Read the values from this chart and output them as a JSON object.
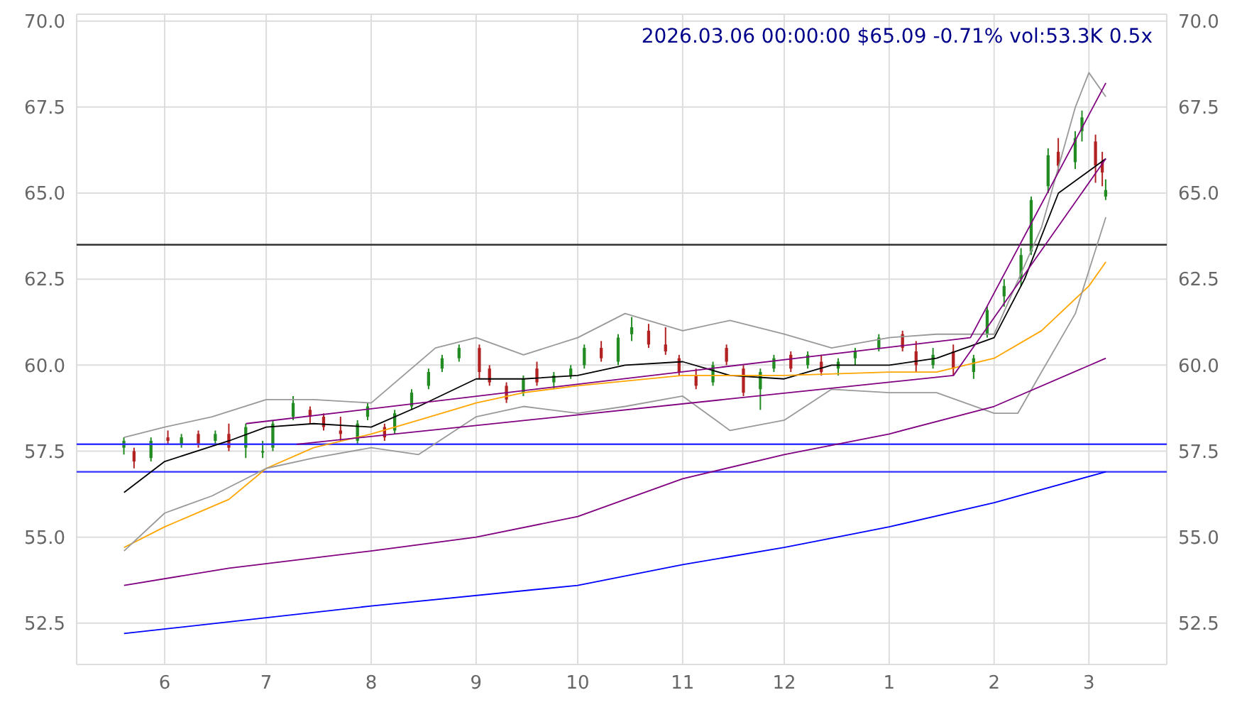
{
  "chart_data": {
    "type": "candlestick",
    "title": "2026.03.06 00:00:00 $65.09 -0.71% vol:53.3K 0.5x",
    "x": [
      "2025-05-20",
      "2025-05-23",
      "2025-05-28",
      "2025-06-02",
      "2025-06-06",
      "2025-06-11",
      "2025-06-16",
      "2025-06-20",
      "2025-06-25",
      "2025-06-30",
      "2025-07-03",
      "2025-07-09",
      "2025-07-14",
      "2025-07-18",
      "2025-07-23",
      "2025-07-28",
      "2025-07-31",
      "2025-08-05",
      "2025-08-08",
      "2025-08-13",
      "2025-08-18",
      "2025-08-22",
      "2025-08-27",
      "2025-09-02",
      "2025-09-05",
      "2025-09-10",
      "2025-09-15",
      "2025-09-19",
      "2025-09-24",
      "2025-09-29",
      "2025-10-03",
      "2025-10-08",
      "2025-10-13",
      "2025-10-17",
      "2025-10-22",
      "2025-10-27",
      "2025-10-31",
      "2025-11-05",
      "2025-11-10",
      "2025-11-14",
      "2025-11-19",
      "2025-11-24",
      "2025-11-28",
      "2025-12-03",
      "2025-12-08",
      "2025-12-12",
      "2025-12-17",
      "2025-12-22",
      "2025-12-29",
      "2026-01-05",
      "2026-01-09",
      "2026-01-14",
      "2026-01-20",
      "2026-01-26",
      "2026-01-30",
      "2026-02-04",
      "2026-02-09",
      "2026-02-12",
      "2026-02-17",
      "2026-02-20",
      "2026-02-25",
      "2026-02-27",
      "2026-03-03",
      "2026-03-05",
      "2026-03-06"
    ],
    "ohlc": [
      [
        57.6,
        57.9,
        57.4,
        57.8
      ],
      [
        57.5,
        57.6,
        57.0,
        57.2
      ],
      [
        57.3,
        57.9,
        57.2,
        57.8
      ],
      [
        57.9,
        58.1,
        57.7,
        57.8
      ],
      [
        57.7,
        58.0,
        57.6,
        57.9
      ],
      [
        58.0,
        58.1,
        57.6,
        57.7
      ],
      [
        57.8,
        58.1,
        57.7,
        58.0
      ],
      [
        58.0,
        58.3,
        57.5,
        57.6
      ],
      [
        57.6,
        58.3,
        57.3,
        58.2
      ],
      [
        57.5,
        57.8,
        57.3,
        57.5
      ],
      [
        57.6,
        58.4,
        57.5,
        58.3
      ],
      [
        58.5,
        59.1,
        58.4,
        58.9
      ],
      [
        58.7,
        58.8,
        58.3,
        58.5
      ],
      [
        58.5,
        58.6,
        58.1,
        58.2
      ],
      [
        58.1,
        58.5,
        57.8,
        58.0
      ],
      [
        57.8,
        58.4,
        57.7,
        58.3
      ],
      [
        58.5,
        58.9,
        58.4,
        58.8
      ],
      [
        58.2,
        58.3,
        57.8,
        57.9
      ],
      [
        58.1,
        58.7,
        58.0,
        58.6
      ],
      [
        58.8,
        59.3,
        58.7,
        59.2
      ],
      [
        59.4,
        59.9,
        59.3,
        59.8
      ],
      [
        59.9,
        60.3,
        59.8,
        60.2
      ],
      [
        60.2,
        60.6,
        60.1,
        60.5
      ],
      [
        60.5,
        60.6,
        59.6,
        59.8
      ],
      [
        59.9,
        60.0,
        59.4,
        59.5
      ],
      [
        59.4,
        59.5,
        58.9,
        59.0
      ],
      [
        59.2,
        59.7,
        59.1,
        59.6
      ],
      [
        59.9,
        60.1,
        59.4,
        59.5
      ],
      [
        59.5,
        59.8,
        59.3,
        59.7
      ],
      [
        59.7,
        60.0,
        59.6,
        59.9
      ],
      [
        60.0,
        60.6,
        59.9,
        60.5
      ],
      [
        60.5,
        60.7,
        60.1,
        60.2
      ],
      [
        60.1,
        60.9,
        60.0,
        60.8
      ],
      [
        60.9,
        61.4,
        60.7,
        61.1
      ],
      [
        61.0,
        61.2,
        60.5,
        60.6
      ],
      [
        60.6,
        61.1,
        60.3,
        60.4
      ],
      [
        60.2,
        60.3,
        59.7,
        59.8
      ],
      [
        59.7,
        59.9,
        59.3,
        59.4
      ],
      [
        59.5,
        60.1,
        59.4,
        60.0
      ],
      [
        60.5,
        60.6,
        60.0,
        60.1
      ],
      [
        59.9,
        60.0,
        59.1,
        59.2
      ],
      [
        59.3,
        59.9,
        58.7,
        59.8
      ],
      [
        59.9,
        60.3,
        59.8,
        60.2
      ],
      [
        60.3,
        60.4,
        59.8,
        59.9
      ],
      [
        60.0,
        60.4,
        59.9,
        60.3
      ],
      [
        60.1,
        60.3,
        59.7,
        59.8
      ],
      [
        59.9,
        60.2,
        59.7,
        60.1
      ],
      [
        60.2,
        60.5,
        60.0,
        60.4
      ],
      [
        60.5,
        60.9,
        60.4,
        60.8
      ],
      [
        60.9,
        61.0,
        60.4,
        60.5
      ],
      [
        60.4,
        60.7,
        59.8,
        60.0
      ],
      [
        60.0,
        60.5,
        59.9,
        60.3
      ],
      [
        60.4,
        60.6,
        59.7,
        59.9
      ],
      [
        59.8,
        60.3,
        59.6,
        60.2
      ],
      [
        60.9,
        61.7,
        60.8,
        61.6
      ],
      [
        62.0,
        62.5,
        61.7,
        62.3
      ],
      [
        62.5,
        63.4,
        62.3,
        63.2
      ],
      [
        63.3,
        64.9,
        63.2,
        64.8
      ],
      [
        65.2,
        66.3,
        65.0,
        66.1
      ],
      [
        66.2,
        66.6,
        65.6,
        65.8
      ],
      [
        65.9,
        66.8,
        65.7,
        66.6
      ],
      [
        66.8,
        67.4,
        66.5,
        67.2
      ],
      [
        66.5,
        66.7,
        65.3,
        65.8
      ],
      [
        65.9,
        66.2,
        65.2,
        65.6
      ],
      [
        64.9,
        65.4,
        64.8,
        65.09
      ]
    ],
    "colors": [
      "#228b22",
      "#b22222",
      "#228b22",
      "#b22222",
      "#228b22",
      "#b22222",
      "#228b22",
      "#b22222",
      "#228b22",
      "#228b22",
      "#228b22",
      "#228b22",
      "#b22222",
      "#b22222",
      "#b22222",
      "#228b22",
      "#228b22",
      "#b22222",
      "#228b22",
      "#228b22",
      "#228b22",
      "#228b22",
      "#228b22",
      "#b22222",
      "#b22222",
      "#b22222",
      "#228b22",
      "#b22222",
      "#228b22",
      "#228b22",
      "#228b22",
      "#b22222",
      "#228b22",
      "#228b22",
      "#b22222",
      "#b22222",
      "#b22222",
      "#b22222",
      "#228b22",
      "#b22222",
      "#b22222",
      "#228b22",
      "#228b22",
      "#b22222",
      "#228b22",
      "#b22222",
      "#228b22",
      "#228b22",
      "#228b22",
      "#b22222",
      "#b22222",
      "#228b22",
      "#b22222",
      "#228b22",
      "#228b22",
      "#228b22",
      "#228b22",
      "#228b22",
      "#228b22",
      "#b22222",
      "#228b22",
      "#228b22",
      "#b22222",
      "#b22222",
      "#228b22"
    ],
    "series": [
      {
        "type": "line",
        "color": "#000000",
        "x": [
          "2025-05-20",
          "2025-06-01",
          "2025-06-20",
          "2025-07-01",
          "2025-07-15",
          "2025-08-01",
          "2025-08-15",
          "2025-09-01",
          "2025-09-15",
          "2025-10-01",
          "2025-10-15",
          "2025-11-01",
          "2025-11-15",
          "2025-12-01",
          "2025-12-15",
          "2026-01-01",
          "2026-01-15",
          "2026-02-01",
          "2026-02-10",
          "2026-02-20",
          "2026-03-06"
        ],
        "values": [
          56.3,
          57.2,
          57.8,
          58.2,
          58.3,
          58.2,
          58.8,
          59.6,
          59.6,
          59.7,
          60.0,
          60.1,
          59.7,
          59.6,
          60.0,
          60.0,
          60.2,
          60.8,
          62.5,
          65.0,
          66.0
        ]
      },
      {
        "type": "line",
        "color": "#ffa500",
        "x": [
          "2025-05-20",
          "2025-06-01",
          "2025-06-20",
          "2025-07-01",
          "2025-07-15",
          "2025-08-01",
          "2025-08-15",
          "2025-09-01",
          "2025-09-15",
          "2025-10-01",
          "2025-11-01",
          "2025-12-01",
          "2026-01-01",
          "2026-01-15",
          "2026-02-01",
          "2026-02-15",
          "2026-03-01",
          "2026-03-06"
        ],
        "values": [
          54.7,
          55.3,
          56.1,
          57.0,
          57.6,
          58.0,
          58.4,
          58.9,
          59.2,
          59.4,
          59.7,
          59.7,
          59.8,
          59.8,
          60.2,
          61.0,
          62.3,
          63.0
        ]
      },
      {
        "type": "line",
        "color": "#999999",
        "x": [
          "2025-05-20",
          "2025-06-01",
          "2025-06-15",
          "2025-07-01",
          "2025-07-15",
          "2025-08-01",
          "2025-08-20",
          "2025-09-01",
          "2025-09-15",
          "2025-10-01",
          "2025-10-15",
          "2025-11-01",
          "2025-11-15",
          "2025-12-01",
          "2025-12-15",
          "2026-01-01",
          "2026-01-15",
          "2026-02-01",
          "2026-02-15",
          "2026-02-25",
          "2026-03-01",
          "2026-03-06"
        ],
        "values": [
          57.9,
          58.2,
          58.5,
          59.0,
          59.0,
          58.9,
          60.5,
          60.8,
          60.3,
          60.8,
          61.5,
          61.0,
          61.3,
          60.9,
          60.5,
          60.8,
          60.9,
          60.9,
          64.0,
          67.5,
          68.5,
          67.8
        ]
      },
      {
        "type": "line",
        "color": "#999999",
        "x": [
          "2025-05-20",
          "2025-06-01",
          "2025-06-15",
          "2025-07-01",
          "2025-07-15",
          "2025-08-01",
          "2025-08-15",
          "2025-09-01",
          "2025-09-15",
          "2025-10-01",
          "2025-10-15",
          "2025-11-01",
          "2025-11-15",
          "2025-12-01",
          "2025-12-15",
          "2026-01-01",
          "2026-01-15",
          "2026-02-01",
          "2026-02-08",
          "2026-02-15",
          "2026-02-25",
          "2026-03-06"
        ],
        "values": [
          54.6,
          55.7,
          56.2,
          57.0,
          57.3,
          57.6,
          57.4,
          58.5,
          58.8,
          58.6,
          58.8,
          59.1,
          58.1,
          58.4,
          59.3,
          59.2,
          59.2,
          58.6,
          58.6,
          59.8,
          61.5,
          64.3
        ]
      },
      {
        "type": "line",
        "color": "#800080",
        "x": [
          "2025-05-20",
          "2025-06-20",
          "2025-08-01",
          "2025-09-01",
          "2025-10-01",
          "2025-11-01",
          "2025-12-01",
          "2026-01-01",
          "2026-02-01",
          "2026-03-06"
        ],
        "values": [
          53.6,
          54.1,
          54.6,
          55.0,
          55.6,
          56.7,
          57.4,
          58.0,
          58.8,
          60.2
        ]
      },
      {
        "type": "line",
        "color": "#0000ff",
        "x": [
          "2025-05-20",
          "2025-08-01",
          "2025-10-01",
          "2025-11-01",
          "2025-12-01",
          "2026-01-01",
          "2026-02-01",
          "2026-03-06"
        ],
        "values": [
          52.2,
          53.0,
          53.6,
          54.2,
          54.7,
          55.3,
          56.0,
          56.9
        ]
      },
      {
        "type": "line",
        "color": "#800080",
        "x": [
          "2025-06-25",
          "2026-01-25",
          "2026-03-06"
        ],
        "values": [
          58.3,
          60.8,
          68.2
        ]
      },
      {
        "type": "line",
        "color": "#800080",
        "x": [
          "2025-07-10",
          "2026-01-20",
          "2026-03-06"
        ],
        "values": [
          57.7,
          59.7,
          66.0
        ]
      }
    ],
    "xlim": [
      "2025-05-06",
      "2026-03-24"
    ],
    "xticks": [
      {
        "value": "2025-06-01",
        "label": "6"
      },
      {
        "value": "2025-07-01",
        "label": "7"
      },
      {
        "value": "2025-08-01",
        "label": "8"
      },
      {
        "value": "2025-09-01",
        "label": "9"
      },
      {
        "value": "2025-10-01",
        "label": "10"
      },
      {
        "value": "2025-11-01",
        "label": "11"
      },
      {
        "value": "2025-12-01",
        "label": "12"
      },
      {
        "value": "2026-01-01",
        "label": "1"
      },
      {
        "value": "2026-02-01",
        "label": "2"
      },
      {
        "value": "2026-03-01",
        "label": "3"
      }
    ],
    "ylim": [
      51.3,
      70.2
    ],
    "yticks": [
      52.5,
      {
        "value": 55,
        "label": "55.0"
      },
      57.5,
      {
        "value": 60,
        "label": "60.0"
      },
      62.5,
      {
        "value": 65,
        "label": "65.0"
      },
      67.5,
      {
        "value": 70,
        "label": "70.0"
      }
    ],
    "y2lim": [
      51.3,
      70.2
    ],
    "y2ticks": [
      52.5,
      {
        "value": 55,
        "label": "55.0"
      },
      57.5,
      {
        "value": 60,
        "label": "60.0"
      },
      62.5,
      {
        "value": 65,
        "label": "65.0"
      },
      67.5,
      {
        "value": 70,
        "label": "70.0"
      }
    ],
    "ref_lines": [
      {
        "axis": "y",
        "value": 56.9,
        "color": "#3333ff"
      },
      {
        "axis": "y",
        "value": 57.7,
        "color": "#3333ff"
      },
      {
        "axis": "y",
        "value": 63.5,
        "color": "#333333"
      }
    ],
    "grid": true
  }
}
